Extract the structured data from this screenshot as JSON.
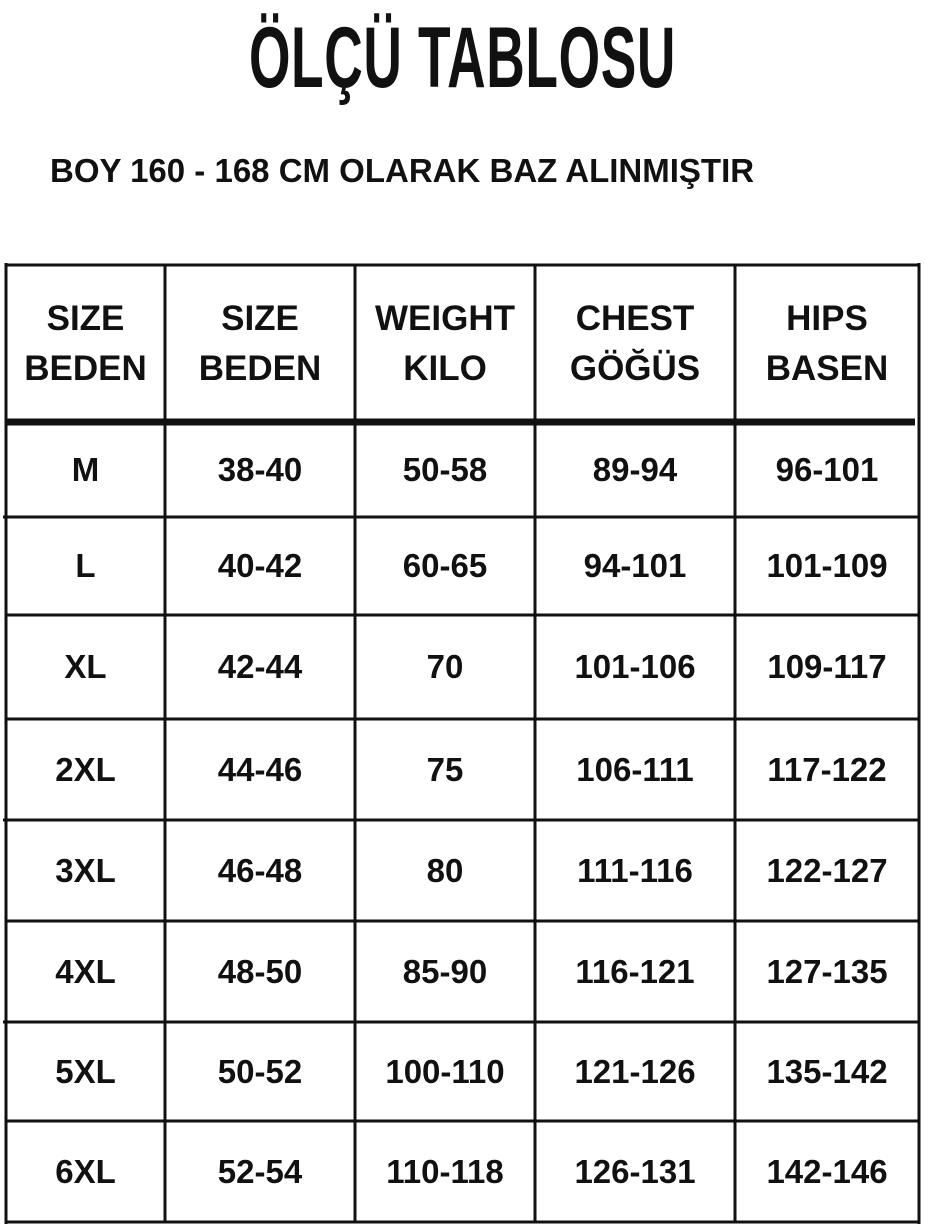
{
  "header": {
    "title": "ÖLÇÜ TABLOSU",
    "subtitle": "BOY 160 - 168 CM OLARAK BAZ ALINMIŞTIR"
  },
  "table": {
    "columns": [
      [
        "SIZE",
        "BEDEN"
      ],
      [
        "SIZE",
        "BEDEN"
      ],
      [
        "WEIGHT",
        "KILO"
      ],
      [
        "CHEST",
        "GÖĞÜS"
      ],
      [
        "HIPS",
        "BASEN"
      ]
    ],
    "rows": [
      [
        "M",
        "38-40",
        "50-58",
        "89-94",
        "96-101"
      ],
      [
        "L",
        "40-42",
        "60-65",
        "94-101",
        "101-109"
      ],
      [
        "XL",
        "42-44",
        "70",
        "101-106",
        "109-117"
      ],
      [
        "2XL",
        "44-46",
        "75",
        "106-111",
        "117-122"
      ],
      [
        "3XL",
        "46-48",
        "80",
        "111-116",
        "122-127"
      ],
      [
        "4XL",
        "48-50",
        "85-90",
        "116-121",
        "127-135"
      ],
      [
        "5XL",
        "50-52",
        "100-110",
        "121-126",
        "135-142"
      ],
      [
        "6XL",
        "52-54",
        "110-118",
        "126-131",
        "142-146"
      ]
    ]
  }
}
